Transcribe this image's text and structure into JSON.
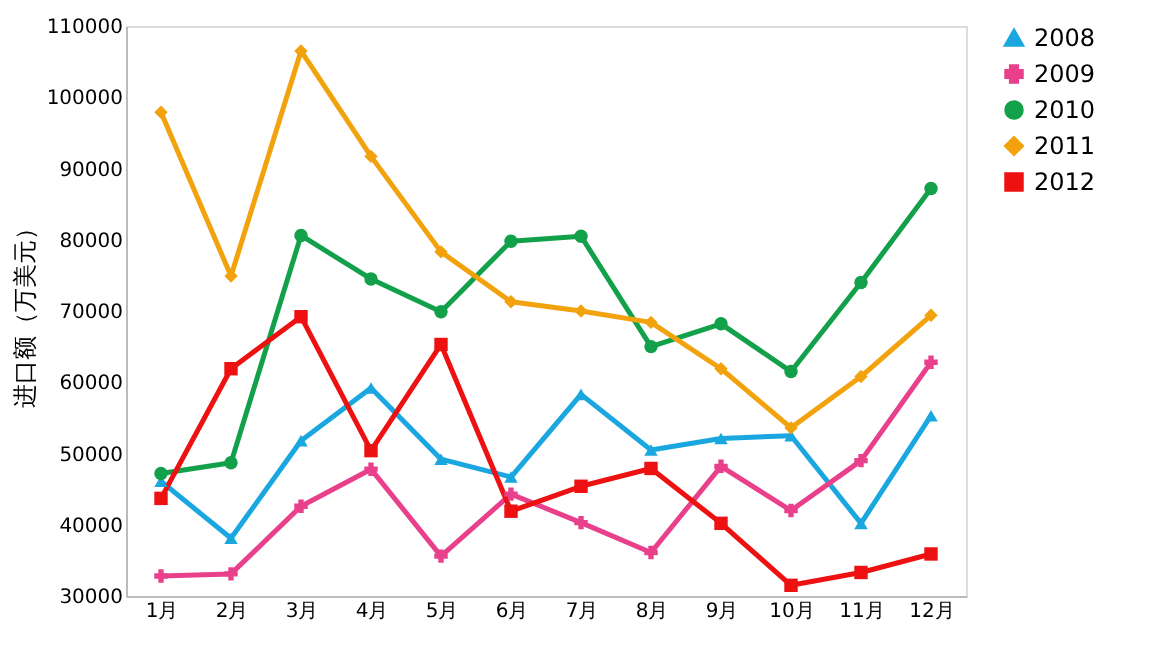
{
  "chart_data": {
    "type": "line",
    "ylabel": "进口额（万美元）",
    "categories": [
      "1月",
      "2月",
      "3月",
      "4月",
      "5月",
      "6月",
      "7月",
      "8月",
      "9月",
      "10月",
      "11月",
      "12月"
    ],
    "ylim": [
      30000,
      110000
    ],
    "yticks": [
      30000,
      40000,
      50000,
      60000,
      70000,
      80000,
      90000,
      100000,
      110000
    ],
    "grid": false,
    "legend": "right",
    "line_style": "solid",
    "series": [
      {
        "name": "2008",
        "color": "#1aa7e0",
        "marker": "triangle",
        "values": [
          46100,
          38100,
          51800,
          59200,
          49200,
          46700,
          58300,
          50500,
          52100,
          52500,
          40200,
          55300
        ]
      },
      {
        "name": "2009",
        "color": "#e8408a",
        "marker": "cross",
        "values": [
          32800,
          33100,
          42600,
          47800,
          35600,
          44300,
          40300,
          36100,
          48200,
          42000,
          49000,
          62800
        ]
      },
      {
        "name": "2010",
        "color": "#12a04a",
        "marker": "circle",
        "values": [
          47200,
          48700,
          80600,
          74500,
          69900,
          79800,
          80500,
          65000,
          68200,
          61500,
          74000,
          87200
        ]
      },
      {
        "name": "2011",
        "color": "#f2a20c",
        "marker": "diamond",
        "values": [
          97900,
          74900,
          106500,
          91700,
          78300,
          71300,
          70000,
          68400,
          61900,
          53600,
          60800,
          69400
        ]
      },
      {
        "name": "2012",
        "color": "#ee1111",
        "marker": "square",
        "values": [
          43700,
          61900,
          69200,
          50400,
          65300,
          41900,
          45400,
          47900,
          40200,
          31500,
          33300,
          35900
        ]
      }
    ]
  }
}
